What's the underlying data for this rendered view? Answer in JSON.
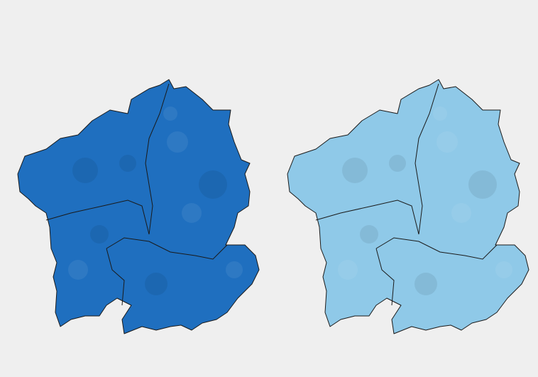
{
  "maps": [
    {
      "color": "#1f6fbf"
    },
    {
      "color": "#8fc9e8"
    }
  ]
}
